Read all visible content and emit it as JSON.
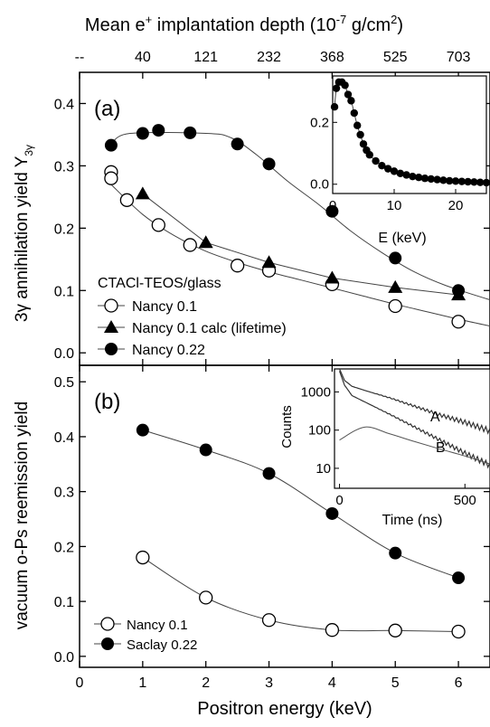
{
  "top_axis": {
    "title_main": "Mean e",
    "title_sup": "+",
    "title_rest": " implantation depth (10",
    "title_exp": "-7",
    "title_unit": " g/cm",
    "title_exp2": "2",
    "title_close": ")",
    "ticks": [
      {
        "x": 0,
        "label": "--"
      },
      {
        "x": 1,
        "label": "40"
      },
      {
        "x": 2,
        "label": "121"
      },
      {
        "x": 3,
        "label": "232"
      },
      {
        "x": 4,
        "label": "368"
      },
      {
        "x": 5,
        "label": "525"
      },
      {
        "x": 6,
        "label": "703"
      }
    ]
  },
  "x_axis": {
    "label": "Positron energy (keV)",
    "ticks": [
      "0",
      "1",
      "2",
      "3",
      "4",
      "5",
      "6"
    ],
    "range": [
      0,
      6.5
    ]
  },
  "chart_data": [
    {
      "type": "scatter",
      "panel_label": "(a)",
      "ylabel": "3γ annihilation yield Y",
      "ylabel_sub": "3γ",
      "ylim": [
        -0.02,
        0.45
      ],
      "yticks": [
        "0.0",
        "0.1",
        "0.2",
        "0.3",
        "0.4"
      ],
      "ytick_values": [
        0.0,
        0.1,
        0.2,
        0.3,
        0.4
      ],
      "legend_title": "CTACl-TEOS/glass",
      "series": [
        {
          "name": "Nancy 0.1",
          "marker": "open-circle",
          "points": [
            [
              0.5,
              0.29
            ],
            [
              0.5,
              0.28
            ],
            [
              0.75,
              0.245
            ],
            [
              1.25,
              0.205
            ],
            [
              1.75,
              0.173
            ],
            [
              2.5,
              0.14
            ],
            [
              3.0,
              0.132
            ],
            [
              4.0,
              0.11
            ],
            [
              5.0,
              0.075
            ],
            [
              6.0,
              0.05
            ]
          ],
          "fit": [
            [
              0.5,
              0.27
            ],
            [
              1.0,
              0.222
            ],
            [
              1.5,
              0.188
            ],
            [
              2.0,
              0.163
            ],
            [
              2.5,
              0.145
            ],
            [
              3.0,
              0.13
            ],
            [
              3.5,
              0.117
            ],
            [
              4.0,
              0.104
            ],
            [
              4.5,
              0.091
            ],
            [
              5.0,
              0.078
            ],
            [
              5.5,
              0.066
            ],
            [
              6.0,
              0.054
            ],
            [
              6.5,
              0.043
            ]
          ]
        },
        {
          "name": "Nancy 0.1 calc (lifetime)",
          "marker": "filled-triangle",
          "points": [
            [
              1.0,
              0.255
            ],
            [
              2.0,
              0.177
            ],
            [
              3.0,
              0.145
            ],
            [
              4.0,
              0.12
            ],
            [
              5.0,
              0.105
            ],
            [
              6.0,
              0.093
            ]
          ],
          "fit": [
            [
              1.0,
              0.255
            ],
            [
              2.0,
              0.177
            ],
            [
              3.0,
              0.145
            ],
            [
              4.0,
              0.12
            ],
            [
              5.0,
              0.105
            ],
            [
              6.0,
              0.093
            ]
          ]
        },
        {
          "name": "Nancy 0.22",
          "marker": "filled-circle",
          "points": [
            [
              0.5,
              0.333
            ],
            [
              1.0,
              0.352
            ],
            [
              1.25,
              0.357
            ],
            [
              1.75,
              0.353
            ],
            [
              2.5,
              0.335
            ],
            [
              3.0,
              0.303
            ],
            [
              4.0,
              0.227
            ],
            [
              5.0,
              0.152
            ],
            [
              6.0,
              0.1
            ]
          ],
          "fit": [
            [
              0.5,
              0.335
            ],
            [
              0.8,
              0.352
            ],
            [
              2.0,
              0.352
            ],
            [
              2.4,
              0.345
            ],
            [
              2.8,
              0.318
            ],
            [
              3.3,
              0.275
            ],
            [
              3.8,
              0.237
            ],
            [
              4.3,
              0.195
            ],
            [
              4.8,
              0.16
            ],
            [
              5.3,
              0.13
            ],
            [
              5.8,
              0.108
            ],
            [
              6.5,
              0.085
            ]
          ]
        }
      ],
      "inset": {
        "type": "scatter",
        "xlabel": "E (keV)",
        "xticks": [
          "0",
          "10",
          "20"
        ],
        "xlim": [
          0,
          25
        ],
        "yticks": [
          "0.0",
          "0.2"
        ],
        "ylim": [
          -0.03,
          0.35
        ],
        "points": [
          [
            0.3,
            0.25
          ],
          [
            0.6,
            0.31
          ],
          [
            1,
            0.33
          ],
          [
            1.5,
            0.33
          ],
          [
            2,
            0.32
          ],
          [
            2.5,
            0.29
          ],
          [
            3,
            0.27
          ],
          [
            3.5,
            0.23
          ],
          [
            4,
            0.19
          ],
          [
            4.5,
            0.16
          ],
          [
            5,
            0.13
          ],
          [
            5.5,
            0.11
          ],
          [
            6,
            0.095
          ],
          [
            7,
            0.075
          ],
          [
            8,
            0.06
          ],
          [
            9,
            0.05
          ],
          [
            10,
            0.042
          ],
          [
            11,
            0.035
          ],
          [
            12,
            0.03
          ],
          [
            13,
            0.025
          ],
          [
            14,
            0.022
          ],
          [
            15,
            0.019
          ],
          [
            16,
            0.017
          ],
          [
            17,
            0.015
          ],
          [
            18,
            0.013
          ],
          [
            19,
            0.011
          ],
          [
            20,
            0.01
          ],
          [
            21,
            0.009
          ],
          [
            22,
            0.008
          ],
          [
            23,
            0.007
          ],
          [
            24,
            0.006
          ],
          [
            25,
            0.005
          ]
        ]
      }
    },
    {
      "type": "scatter",
      "panel_label": "(b)",
      "ylabel": "vacuum o-Ps reemission yield",
      "ylim": [
        -0.02,
        0.53
      ],
      "yticks": [
        "0.0",
        "0.1",
        "0.2",
        "0.3",
        "0.4",
        "0.5"
      ],
      "ytick_values": [
        0.0,
        0.1,
        0.2,
        0.3,
        0.4,
        0.5
      ],
      "series": [
        {
          "name": "Nancy 0.1",
          "marker": "open-circle",
          "points": [
            [
              1,
              0.18
            ],
            [
              2,
              0.107
            ],
            [
              3,
              0.066
            ],
            [
              4,
              0.048
            ],
            [
              5,
              0.047
            ],
            [
              6,
              0.045
            ]
          ]
        },
        {
          "name": "Saclay 0.22",
          "marker": "filled-circle",
          "points": [
            [
              1,
              0.412
            ],
            [
              2,
              0.376
            ],
            [
              3,
              0.333
            ],
            [
              4,
              0.26
            ],
            [
              5,
              0.188
            ],
            [
              6,
              0.143
            ]
          ]
        }
      ],
      "inset": {
        "type": "line",
        "ylabel": "Counts",
        "xlabel": "Time (ns)",
        "xticks": [
          "0",
          "500"
        ],
        "xlim": [
          -20,
          600
        ],
        "log_y": true,
        "yticks": [
          "10",
          "100",
          "1000"
        ],
        "ylim": [
          3,
          4000
        ],
        "curves": [
          {
            "name": "A",
            "points": [
              [
                0,
                4000
              ],
              [
                20,
                2000
              ],
              [
                50,
                1400
              ],
              [
                100,
                1100
              ],
              [
                200,
                700
              ],
              [
                300,
                420
              ],
              [
                400,
                250
              ],
              [
                500,
                160
              ],
              [
                600,
                95
              ]
            ]
          },
          {
            "name": "B",
            "points": [
              [
                0,
                3500
              ],
              [
                20,
                1500
              ],
              [
                50,
                800
              ],
              [
                100,
                550
              ],
              [
                200,
                260
              ],
              [
                300,
                120
              ],
              [
                400,
                55
              ],
              [
                500,
                25
              ],
              [
                600,
                12
              ]
            ]
          },
          {
            "name": "",
            "points": [
              [
                0,
                55
              ],
              [
                100,
                120
              ],
              [
                200,
                80
              ],
              [
                300,
                50
              ],
              [
                400,
                32
              ],
              [
                500,
                21
              ],
              [
                600,
                13
              ]
            ]
          }
        ]
      }
    }
  ]
}
